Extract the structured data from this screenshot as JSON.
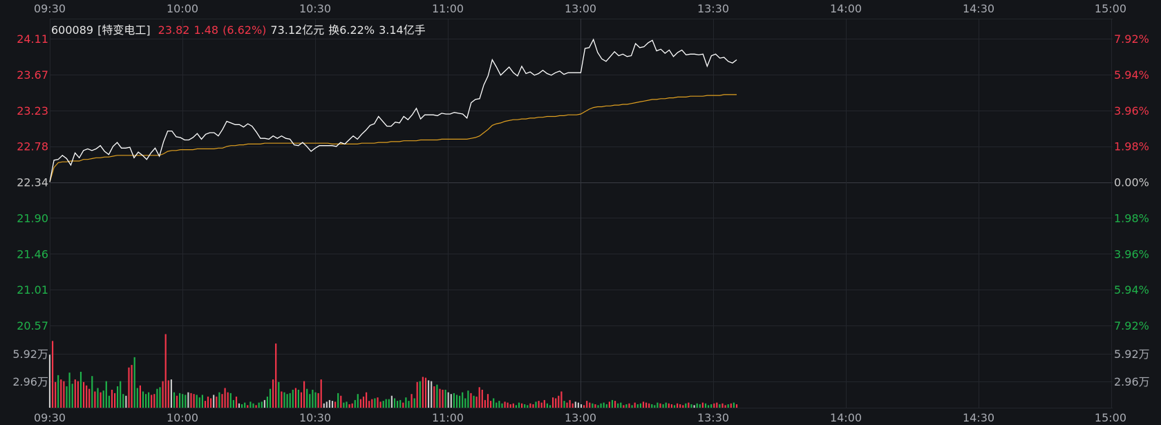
{
  "info": {
    "code": "600089",
    "name": "[特变电工]",
    "price": "23.82",
    "change": "1.48",
    "change_pct": "(6.62%)",
    "amount": "73.12亿元",
    "turnover": "换6.22%",
    "volume": "3.14亿手"
  },
  "colors": {
    "up": "#f2364a",
    "down": "#1fb24a",
    "flat": "#c8c8c8",
    "price_line": "#ffffff",
    "avg_line": "#e0a020",
    "grid": "#23262c",
    "bg": "#131519"
  },
  "time_labels": [
    "09:30",
    "10:00",
    "10:30",
    "11:00",
    "13:00",
    "13:30",
    "14:00",
    "14:30",
    "15:00"
  ],
  "chart_data": {
    "type": "line",
    "title": "600089 [特变电工]",
    "prev_close": 22.34,
    "ylim": [
      20.57,
      24.11
    ],
    "price_ticks": [
      "24.11",
      "23.67",
      "23.23",
      "22.78",
      "22.34",
      "21.90",
      "21.46",
      "21.01",
      "20.57"
    ],
    "pct_ticks": [
      "7.92%",
      "5.94%",
      "3.96%",
      "1.98%",
      "0.00%",
      "1.98%",
      "3.96%",
      "5.94%",
      "7.92%"
    ],
    "volume_ticks": [
      "5.92万",
      "2.96万"
    ],
    "volume_ylim": [
      0,
      88800
    ],
    "series": [
      {
        "role": "price",
        "values": [
          22.34,
          22.61,
          22.62,
          22.67,
          22.63,
          22.55,
          22.7,
          22.64,
          22.73,
          22.75,
          22.73,
          22.75,
          22.79,
          22.72,
          22.68,
          22.78,
          22.83,
          22.76,
          22.76,
          22.77,
          22.64,
          22.71,
          22.67,
          22.62,
          22.7,
          22.76,
          22.66,
          22.84,
          22.97,
          22.97,
          22.9,
          22.89,
          22.86,
          22.86,
          22.89,
          22.94,
          22.87,
          22.93,
          22.95,
          22.95,
          22.91,
          22.99,
          23.09,
          23.07,
          23.05,
          23.05,
          23.02,
          23.06,
          23.03,
          22.96,
          22.88,
          22.88,
          22.87,
          22.91,
          22.88,
          22.91,
          22.88,
          22.87,
          22.8,
          22.79,
          22.83,
          22.78,
          22.72,
          22.76,
          22.79,
          22.79,
          22.79,
          22.79,
          22.78,
          22.83,
          22.81,
          22.86,
          22.91,
          22.87,
          22.93,
          22.98,
          23.04,
          23.06,
          23.15,
          23.09,
          23.03,
          23.03,
          23.08,
          23.07,
          23.15,
          23.11,
          23.17,
          23.25,
          23.12,
          23.17,
          23.17,
          23.17,
          23.16,
          23.19,
          23.18,
          23.18,
          23.2,
          23.19,
          23.18,
          23.13,
          23.32,
          23.36,
          23.37,
          23.54,
          23.65,
          23.85,
          23.76,
          23.66,
          23.71,
          23.76,
          23.69,
          23.65,
          23.77,
          23.68,
          23.7,
          23.66,
          23.68,
          23.72,
          23.68,
          23.66,
          23.69,
          23.71,
          23.67,
          23.69,
          23.69,
          23.69,
          23.69,
          23.99,
          24.0,
          24.1,
          23.94,
          23.86,
          23.83,
          23.89,
          23.95,
          23.9,
          23.92,
          23.89,
          23.9,
          24.05,
          24.0,
          24.01,
          24.06,
          24.09,
          23.96,
          23.98,
          23.93,
          23.97,
          23.89,
          23.94,
          23.97,
          23.91,
          23.92,
          23.92,
          23.91,
          23.92,
          23.77,
          23.9,
          23.92,
          23.87,
          23.88,
          23.83,
          23.81,
          23.85
        ]
      },
      {
        "role": "average",
        "values": [
          22.34,
          22.52,
          22.58,
          22.59,
          22.59,
          22.6,
          22.6,
          22.6,
          22.62,
          22.62,
          22.63,
          22.64,
          22.64,
          22.65,
          22.65,
          22.66,
          22.67,
          22.67,
          22.67,
          22.67,
          22.67,
          22.67,
          22.67,
          22.67,
          22.67,
          22.67,
          22.67,
          22.69,
          22.72,
          22.73,
          22.73,
          22.74,
          22.74,
          22.74,
          22.74,
          22.75,
          22.75,
          22.75,
          22.75,
          22.75,
          22.76,
          22.76,
          22.78,
          22.79,
          22.79,
          22.8,
          22.8,
          22.81,
          22.81,
          22.81,
          22.81,
          22.82,
          22.82,
          22.82,
          22.82,
          22.82,
          22.82,
          22.82,
          22.82,
          22.82,
          22.82,
          22.82,
          22.82,
          22.82,
          22.82,
          22.82,
          22.82,
          22.81,
          22.81,
          22.81,
          22.81,
          22.81,
          22.81,
          22.81,
          22.82,
          22.82,
          22.82,
          22.82,
          22.83,
          22.83,
          22.83,
          22.84,
          22.84,
          22.84,
          22.85,
          22.85,
          22.85,
          22.85,
          22.86,
          22.86,
          22.86,
          22.86,
          22.86,
          22.87,
          22.87,
          22.87,
          22.87,
          22.87,
          22.87,
          22.87,
          22.88,
          22.89,
          22.91,
          22.95,
          22.99,
          23.04,
          23.06,
          23.07,
          23.09,
          23.1,
          23.11,
          23.11,
          23.12,
          23.12,
          23.13,
          23.13,
          23.14,
          23.14,
          23.15,
          23.15,
          23.15,
          23.16,
          23.16,
          23.17,
          23.17,
          23.17,
          23.18,
          23.21,
          23.24,
          23.26,
          23.27,
          23.27,
          23.28,
          23.28,
          23.29,
          23.29,
          23.3,
          23.3,
          23.31,
          23.32,
          23.33,
          23.34,
          23.35,
          23.36,
          23.36,
          23.37,
          23.37,
          23.38,
          23.38,
          23.39,
          23.39,
          23.39,
          23.4,
          23.4,
          23.4,
          23.4,
          23.41,
          23.41,
          23.41,
          23.41,
          23.42,
          23.42,
          23.42,
          23.42
        ]
      }
    ],
    "volumes": [
      62000,
      78000,
      30000,
      38000,
      33000,
      31000,
      25000,
      41000,
      28000,
      33000,
      31000,
      42000,
      30000,
      26000,
      22000,
      37000,
      19000,
      23000,
      18000,
      20000,
      31000,
      14000,
      21000,
      17000,
      25000,
      31000,
      16000,
      14000,
      47000,
      50000,
      59000,
      23000,
      26000,
      19000,
      16000,
      18000,
      15000,
      16000,
      22000,
      24000,
      31000,
      86000,
      32000,
      33000,
      18000,
      14000,
      17000,
      16000,
      15000,
      18000,
      17000,
      16000,
      15000,
      12000,
      15000,
      8000,
      13000,
      11000,
      15000,
      13000,
      18000,
      16000,
      23000,
      18000,
      17000,
      9000,
      13000,
      5000,
      4000,
      6000,
      3000,
      7000,
      5000,
      3000,
      6000,
      7000,
      9000,
      13000,
      22000,
      33000,
      75000,
      30000,
      19000,
      18000,
      16000,
      17000,
      21000,
      23000,
      21000,
      18000,
      31000,
      22000,
      16000,
      21000,
      18000,
      17000,
      33000,
      5000,
      7000,
      9000,
      8000,
      7000,
      17000,
      14000,
      6000,
      7000,
      4000,
      5000,
      9000,
      16000,
      10000,
      13000,
      18000,
      8000,
      10000,
      11000,
      12000,
      7000,
      8000,
      10000,
      10000,
      14000,
      11000,
      8000,
      9000,
      6000,
      12000,
      8000,
      16000,
      11000,
      30000,
      31000,
      36000,
      35000,
      32000,
      31000,
      25000,
      27000,
      22000,
      21000,
      21000,
      18000,
      16000,
      17000,
      15000,
      14000,
      18000,
      11000,
      20000,
      17000,
      14000,
      13000,
      24000,
      21000,
      9000,
      16000,
      8000,
      11000,
      6000,
      8000,
      5000,
      7000,
      6000,
      4000,
      5000,
      3000,
      6000,
      5000,
      4000,
      3000,
      5000,
      4000,
      7000,
      8000,
      6000,
      9000,
      5000,
      3000,
      12000,
      11000,
      14000,
      19000,
      8000,
      6000,
      9000,
      5000,
      7000,
      6000,
      4000,
      3000,
      8000,
      6000,
      5000,
      4000,
      3000,
      5000,
      6000,
      4000,
      7000,
      9000,
      8000,
      5000,
      6000,
      3000,
      4000,
      5000,
      3000,
      6000,
      4000,
      5000,
      7000,
      6000,
      5000,
      4000,
      3000,
      6000,
      5000,
      4000,
      6000,
      5000,
      4000,
      3000,
      5000,
      4000,
      3000,
      5000,
      6000,
      4000,
      3000,
      5000,
      4000,
      6000,
      5000,
      3000,
      4000,
      5000,
      6000,
      4000,
      5000,
      3000,
      4000,
      5000,
      6000,
      4000
    ]
  }
}
